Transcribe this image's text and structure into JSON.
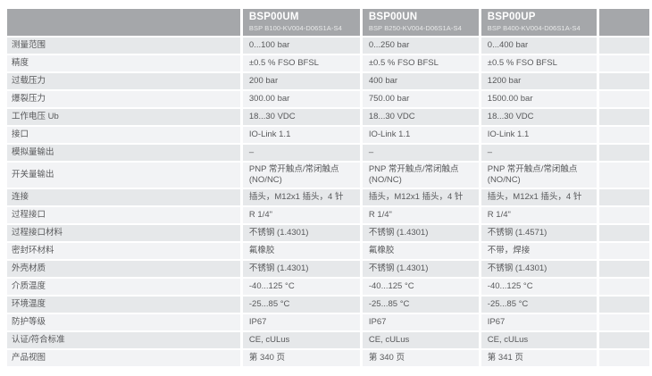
{
  "colors": {
    "header_bg": "#a5a7aa",
    "row_odd_bg": "#e6e8ea",
    "row_even_bg": "#f2f3f5",
    "body_text": "#58595b",
    "header_text": "#ffffff"
  },
  "products": [
    {
      "name": "BSP00UM",
      "code": "BSP B100-KV004-D06S1A-S4"
    },
    {
      "name": "BSP00UN",
      "code": "BSP B250-KV004-D06S1A-S4"
    },
    {
      "name": "BSP00UP",
      "code": "BSP B400-KV004-D06S1A-S4"
    }
  ],
  "rows": [
    {
      "label": "测量范围",
      "values": [
        "0...100 bar",
        "0...250 bar",
        "0...400 bar"
      ]
    },
    {
      "label": "精度",
      "values": [
        "±0.5 % FSO BFSL",
        "±0.5 % FSO BFSL",
        "±0.5 % FSO BFSL"
      ]
    },
    {
      "label": "过载压力",
      "values": [
        "200 bar",
        "400 bar",
        "1200 bar"
      ]
    },
    {
      "label": "爆裂压力",
      "values": [
        "300.00 bar",
        "750.00 bar",
        "1500.00 bar"
      ]
    },
    {
      "label": "工作电压 Ub",
      "values": [
        "18...30 VDC",
        "18...30 VDC",
        "18...30 VDC"
      ]
    },
    {
      "label": "接口",
      "values": [
        "IO-Link 1.1",
        "IO-Link 1.1",
        "IO-Link 1.1"
      ]
    },
    {
      "label": "模拟量输出",
      "values": [
        "–",
        "–",
        "–"
      ]
    },
    {
      "label": "开关量输出",
      "values": [
        "PNP 常开触点/常闭触点 (NO/NC)",
        "PNP 常开触点/常闭触点 (NO/NC)",
        "PNP 常开触点/常闭触点 (NO/NC)"
      ]
    },
    {
      "label": "连接",
      "values": [
        "插头，M12x1 插头，4 针",
        "插头，M12x1 插头，4 针",
        "插头，M12x1 插头，4 针"
      ]
    },
    {
      "label": "过程接口",
      "values": [
        "R 1/4\"",
        "R 1/4\"",
        "R 1/4\""
      ]
    },
    {
      "label": "过程接口材料",
      "values": [
        "不锈钢 (1.4301)",
        "不锈钢 (1.4301)",
        "不锈钢 (1.4571)"
      ]
    },
    {
      "label": "密封环材料",
      "values": [
        "氟橡胶",
        "氟橡胶",
        "不带，焊接"
      ]
    },
    {
      "label": "外壳材质",
      "values": [
        "不锈钢 (1.4301)",
        "不锈钢 (1.4301)",
        "不锈钢 (1.4301)"
      ]
    },
    {
      "label": "介质温度",
      "values": [
        "-40...125 °C",
        "-40...125 °C",
        "-40...125 °C"
      ]
    },
    {
      "label": "环境温度",
      "values": [
        "-25...85 °C",
        "-25...85 °C",
        "-25...85 °C"
      ]
    },
    {
      "label": "防护等级",
      "values": [
        "IP67",
        "IP67",
        "IP67"
      ]
    },
    {
      "label": "认证/符合标准",
      "values": [
        "CE, cULus",
        "CE, cULus",
        "CE, cULus"
      ]
    },
    {
      "label": "产品视图",
      "values": [
        "第 340 页",
        "第 340 页",
        "第 341 页"
      ]
    }
  ]
}
